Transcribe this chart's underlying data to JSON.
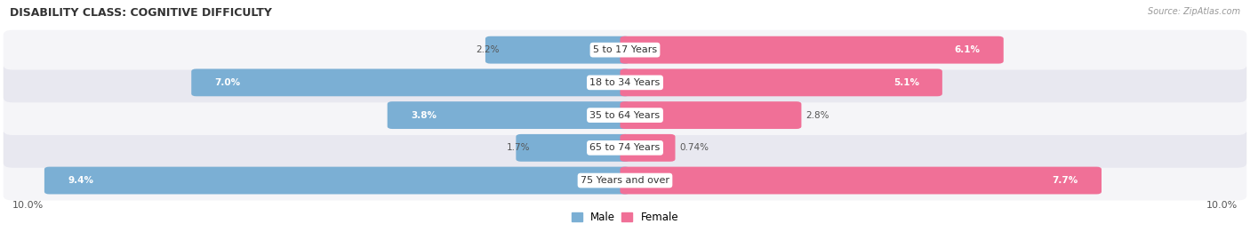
{
  "title": "DISABILITY CLASS: COGNITIVE DIFFICULTY",
  "source": "Source: ZipAtlas.com",
  "categories": [
    "5 to 17 Years",
    "18 to 34 Years",
    "35 to 64 Years",
    "65 to 74 Years",
    "75 Years and over"
  ],
  "male_values": [
    2.2,
    7.0,
    3.8,
    1.7,
    9.4
  ],
  "female_values": [
    6.1,
    5.1,
    2.8,
    0.74,
    7.7
  ],
  "male_color": "#7bafd4",
  "female_color": "#f07097",
  "male_label": "Male",
  "female_label": "Female",
  "axis_max": 10.0,
  "row_bg_colors": [
    "#f5f5f8",
    "#e8e8f0"
  ],
  "title_fontsize": 9,
  "label_fontsize": 8,
  "value_fontsize": 7.5,
  "axis_label_left": "10.0%",
  "axis_label_right": "10.0%"
}
